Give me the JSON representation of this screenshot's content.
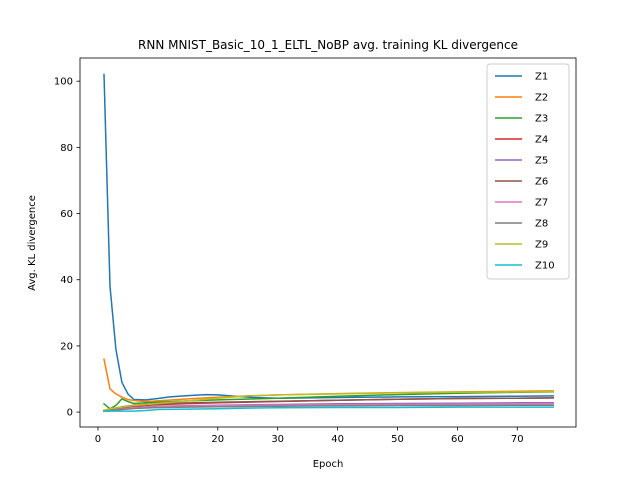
{
  "chart_data": {
    "type": "line",
    "title": "RNN MNIST_Basic_10_1_ELTL_NoBP avg. training KL divergence",
    "xlabel": "Epoch",
    "ylabel": "Avg. KL divergence",
    "xlim": [
      -3,
      79.8
    ],
    "ylim": [
      -4.5,
      107
    ],
    "xticks": [
      0,
      10,
      20,
      30,
      40,
      50,
      60,
      70
    ],
    "yticks": [
      0,
      20,
      40,
      60,
      80,
      100
    ],
    "grid": false,
    "legend_placement": "top-right",
    "series": [
      {
        "name": "Z1",
        "color": "#1f77b4",
        "points": [
          [
            1,
            102
          ],
          [
            2,
            38
          ],
          [
            3,
            19
          ],
          [
            4,
            9
          ],
          [
            5,
            5.5
          ],
          [
            6,
            3.8
          ],
          [
            8,
            3.7
          ],
          [
            10,
            4.1
          ],
          [
            12,
            4.6
          ],
          [
            15,
            5.0
          ],
          [
            18,
            5.3
          ],
          [
            20,
            5.2
          ],
          [
            23,
            4.8
          ],
          [
            26,
            4.4
          ],
          [
            30,
            4.2
          ],
          [
            35,
            4.3
          ],
          [
            40,
            4.4
          ],
          [
            50,
            4.6
          ],
          [
            60,
            4.7
          ],
          [
            70,
            4.8
          ],
          [
            76,
            4.9
          ]
        ]
      },
      {
        "name": "Z2",
        "color": "#ff7f0e",
        "points": [
          [
            1,
            16
          ],
          [
            2,
            7
          ],
          [
            3,
            5.5
          ],
          [
            4,
            4.5
          ],
          [
            5,
            3.8
          ],
          [
            6,
            3.5
          ],
          [
            8,
            3.2
          ],
          [
            10,
            3.4
          ],
          [
            15,
            4.0
          ],
          [
            20,
            4.5
          ],
          [
            25,
            4.9
          ],
          [
            30,
            5.2
          ],
          [
            40,
            5.6
          ],
          [
            50,
            5.9
          ],
          [
            60,
            6.1
          ],
          [
            70,
            6.3
          ],
          [
            76,
            6.4
          ]
        ]
      },
      {
        "name": "Z3",
        "color": "#2ca02c",
        "points": [
          [
            1,
            2.5
          ],
          [
            2,
            1.0
          ],
          [
            3,
            2.0
          ],
          [
            4,
            4.0
          ],
          [
            5,
            3.2
          ],
          [
            6,
            2.6
          ],
          [
            8,
            2.8
          ],
          [
            10,
            3.0
          ],
          [
            15,
            3.4
          ],
          [
            20,
            3.7
          ],
          [
            30,
            4.2
          ],
          [
            40,
            4.8
          ],
          [
            50,
            5.3
          ],
          [
            60,
            5.7
          ],
          [
            70,
            6.0
          ],
          [
            76,
            6.1
          ]
        ]
      },
      {
        "name": "Z4",
        "color": "#d62728",
        "points": [
          [
            1,
            0.5
          ],
          [
            2,
            0.8
          ],
          [
            4,
            1.3
          ],
          [
            6,
            1.8
          ],
          [
            10,
            2.3
          ],
          [
            20,
            2.8
          ],
          [
            30,
            3.2
          ],
          [
            40,
            3.6
          ],
          [
            50,
            3.9
          ],
          [
            60,
            4.1
          ],
          [
            70,
            4.2
          ],
          [
            76,
            4.3
          ]
        ]
      },
      {
        "name": "Z5",
        "color": "#9467bd",
        "points": [
          [
            1,
            0.4
          ],
          [
            2,
            0.6
          ],
          [
            4,
            1.0
          ],
          [
            6,
            1.4
          ],
          [
            10,
            1.8
          ],
          [
            20,
            2.1
          ],
          [
            30,
            2.3
          ],
          [
            40,
            2.5
          ],
          [
            50,
            2.6
          ],
          [
            60,
            2.7
          ],
          [
            70,
            2.8
          ],
          [
            76,
            2.8
          ]
        ]
      },
      {
        "name": "Z6",
        "color": "#8c564b",
        "points": [
          [
            1,
            0.5
          ],
          [
            2,
            0.9
          ],
          [
            4,
            1.6
          ],
          [
            6,
            2.1
          ],
          [
            10,
            2.6
          ],
          [
            20,
            3.0
          ],
          [
            30,
            3.3
          ],
          [
            40,
            3.6
          ],
          [
            50,
            3.9
          ],
          [
            60,
            4.1
          ],
          [
            70,
            4.2
          ],
          [
            76,
            4.3
          ]
        ]
      },
      {
        "name": "Z7",
        "color": "#e377c2",
        "points": [
          [
            1,
            0.3
          ],
          [
            2,
            0.5
          ],
          [
            4,
            0.9
          ],
          [
            6,
            1.3
          ],
          [
            10,
            1.6
          ],
          [
            20,
            1.9
          ],
          [
            30,
            2.1
          ],
          [
            40,
            2.2
          ],
          [
            50,
            2.3
          ],
          [
            60,
            2.4
          ],
          [
            70,
            2.5
          ],
          [
            76,
            2.5
          ]
        ]
      },
      {
        "name": "Z8",
        "color": "#7f7f7f",
        "points": [
          [
            1,
            0.3
          ],
          [
            2,
            0.5
          ],
          [
            4,
            0.8
          ],
          [
            6,
            1.1
          ],
          [
            10,
            1.4
          ],
          [
            20,
            1.6
          ],
          [
            30,
            1.8
          ],
          [
            40,
            1.9
          ],
          [
            50,
            2.0
          ],
          [
            60,
            2.0
          ],
          [
            70,
            2.1
          ],
          [
            76,
            2.1
          ]
        ]
      },
      {
        "name": "Z9",
        "color": "#bcbd22",
        "points": [
          [
            1,
            0.6
          ],
          [
            2,
            1.0
          ],
          [
            4,
            1.5
          ],
          [
            6,
            2.0
          ],
          [
            10,
            2.6
          ],
          [
            15,
            3.4
          ],
          [
            20,
            4.2
          ],
          [
            25,
            4.9
          ],
          [
            30,
            5.2
          ],
          [
            40,
            5.5
          ],
          [
            50,
            5.8
          ],
          [
            60,
            6.0
          ],
          [
            70,
            6.1
          ],
          [
            76,
            6.2
          ]
        ]
      },
      {
        "name": "Z10",
        "color": "#17becf",
        "points": [
          [
            1,
            0.2
          ],
          [
            2,
            0.3
          ],
          [
            4,
            0.3
          ],
          [
            6,
            0.3
          ],
          [
            8,
            0.5
          ],
          [
            10,
            0.8
          ],
          [
            15,
            0.9
          ],
          [
            20,
            1.0
          ],
          [
            25,
            1.2
          ],
          [
            30,
            1.3
          ],
          [
            40,
            1.4
          ],
          [
            50,
            1.4
          ],
          [
            60,
            1.5
          ],
          [
            70,
            1.5
          ],
          [
            76,
            1.5
          ]
        ]
      }
    ]
  }
}
